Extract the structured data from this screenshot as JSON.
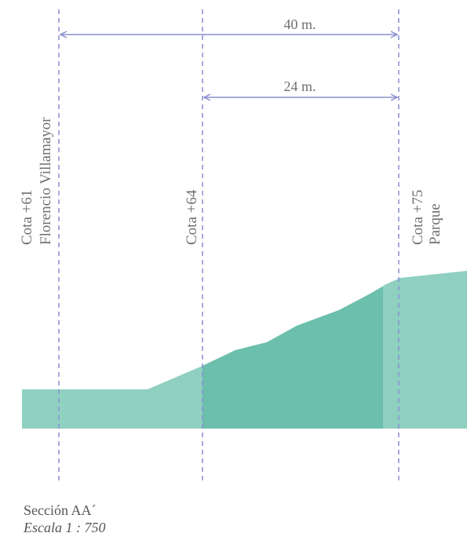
{
  "colors": {
    "terrain_light": "#8fd0c1",
    "terrain_dark": "#6cbfad",
    "guide_line": "#8a8fcf",
    "dimension_line": "#8a8fcf",
    "text": "#6f6f6f"
  },
  "guides": {
    "left": {
      "line1": "Cota +61",
      "line2": "Florencio Villamayor"
    },
    "middle": {
      "line1": "Cota +64"
    },
    "right": {
      "line1": "Cota +75",
      "line2": "Parque"
    }
  },
  "dimensions": {
    "long": "40 m.",
    "short": "24 m."
  },
  "caption": {
    "title": "Sección AA´",
    "scale": "Escala 1 : 750"
  }
}
